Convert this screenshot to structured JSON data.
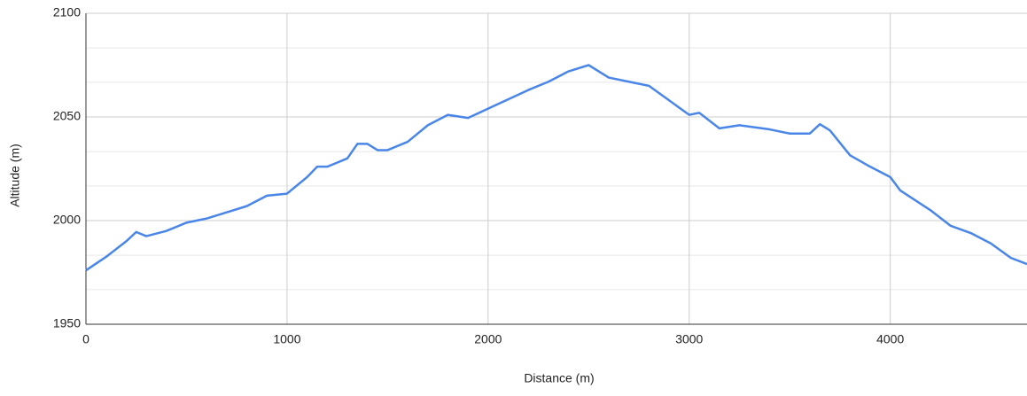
{
  "chart_data": {
    "type": "line",
    "x_label": "Distance (m)",
    "y_label": "Altitude (m)",
    "x": [
      0,
      100,
      200,
      250,
      300,
      400,
      500,
      600,
      700,
      800,
      900,
      1000,
      1100,
      1150,
      1200,
      1300,
      1350,
      1400,
      1450,
      1500,
      1600,
      1700,
      1800,
      1900,
      2000,
      2100,
      2200,
      2300,
      2400,
      2500,
      2600,
      2700,
      2800,
      2900,
      3000,
      3050,
      3150,
      3250,
      3400,
      3500,
      3600,
      3650,
      3700,
      3800,
      3900,
      4000,
      4050,
      4200,
      4300,
      4400,
      4500,
      4600,
      4680
    ],
    "series": [
      {
        "name": "Altitude",
        "color": "#4a86e8",
        "values": [
          1976,
          1982.5,
          1990,
          1994.5,
          1992.5,
          1995,
          1999,
          2001,
          2004,
          2007,
          2012,
          2013,
          2021,
          2026,
          2026,
          2030,
          2037,
          2037,
          2034,
          2034,
          2038,
          2046,
          2051,
          2049.5,
          2054,
          2058.5,
          2063,
          2067,
          2072,
          2075,
          2069,
          2067,
          2065,
          2058,
          2051,
          2052,
          2044.5,
          2046,
          2044,
          2042,
          2042,
          2046.5,
          2043.5,
          2031.5,
          2026,
          2021,
          2014.5,
          2005,
          1997.5,
          1994,
          1989,
          1982,
          1979
        ]
      }
    ],
    "xlim": [
      0,
      4680
    ],
    "xticks": [
      0,
      1000,
      2000,
      3000,
      4000
    ],
    "ylim": [
      1950,
      2100
    ],
    "yticks": [
      1950,
      2000,
      2050,
      2100
    ],
    "y_minor_ticks": [
      1966.7,
      1983.3,
      2016.7,
      2033.3,
      2066.7,
      2083.3
    ],
    "grid": true
  }
}
